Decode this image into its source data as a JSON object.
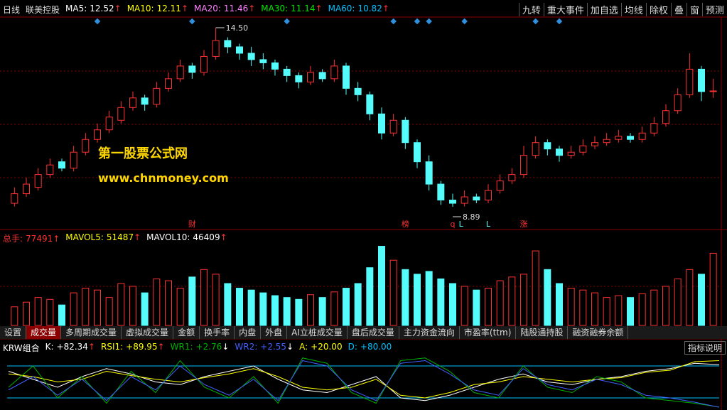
{
  "toolbar": {
    "period": "日线",
    "stock": "联美控股",
    "buttons": [
      "九转",
      "重大事件",
      "加自选",
      "均线",
      "除权",
      "叠",
      "窗",
      "预测"
    ]
  },
  "tabs": [
    "设置",
    "成交量",
    "多周期成交量",
    "虚拟成交量",
    "金额",
    "换手率",
    "内盘",
    "外盘",
    "AI立桩成交量",
    "盘后成交量",
    "主力资金流向",
    "市盈率(ttm)",
    "陆股通持股",
    "融资融券余额"
  ],
  "indicator_help": "指标说明",
  "watermark": {
    "line1": "第一股票公式网",
    "line2": "www.chnmoney.com"
  },
  "chart_data": [
    {
      "type": "candlestick",
      "ylim": [
        8.2,
        14.7
      ],
      "up_color": "#ff3232",
      "down_color": "#54fcfc",
      "legend_items": [
        {
          "name": "MA5:",
          "value": 12.52,
          "color": "#ffffff",
          "arrow": "↑"
        },
        {
          "name": "MA10:",
          "value": 12.11,
          "color": "#ffff00",
          "arrow": "↑"
        },
        {
          "name": "MA20:",
          "value": 11.46,
          "color": "#ff80ff",
          "arrow": "↑"
        },
        {
          "name": "MA30:",
          "value": 11.14,
          "color": "#00e600",
          "arrow": "↑"
        },
        {
          "name": "MA60:",
          "value": 10.82,
          "color": "#00c0ff",
          "arrow": "↑"
        }
      ],
      "high_label": {
        "value": 14.5,
        "label": "14.50"
      },
      "low_label": {
        "value": 8.89,
        "label": "8.89"
      },
      "markers": [
        "财",
        "榜",
        "q",
        "L",
        "L",
        "涨"
      ],
      "candles": [
        [
          9.0,
          9.5,
          8.9,
          9.3
        ],
        [
          9.3,
          9.8,
          9.2,
          9.6
        ],
        [
          9.5,
          10.1,
          9.4,
          9.9
        ],
        [
          9.9,
          10.4,
          9.8,
          10.2
        ],
        [
          10.3,
          10.4,
          10.0,
          10.1
        ],
        [
          10.1,
          10.8,
          10.0,
          10.6
        ],
        [
          10.6,
          11.2,
          10.5,
          11.0
        ],
        [
          11.0,
          11.5,
          10.9,
          11.3
        ],
        [
          11.3,
          11.9,
          11.2,
          11.7
        ],
        [
          11.6,
          12.2,
          11.5,
          12.0
        ],
        [
          12.0,
          12.5,
          11.9,
          12.3
        ],
        [
          12.3,
          12.4,
          11.9,
          12.1
        ],
        [
          12.1,
          12.8,
          12.0,
          12.6
        ],
        [
          12.6,
          13.1,
          12.5,
          12.9
        ],
        [
          12.9,
          13.5,
          12.8,
          13.3
        ],
        [
          13.3,
          13.4,
          12.9,
          13.1
        ],
        [
          13.1,
          13.8,
          13.0,
          13.6
        ],
        [
          13.6,
          14.5,
          13.5,
          14.1
        ],
        [
          14.1,
          14.2,
          13.7,
          13.9
        ],
        [
          13.9,
          14.0,
          13.5,
          13.7
        ],
        [
          13.7,
          13.9,
          13.3,
          13.5
        ],
        [
          13.5,
          13.7,
          13.2,
          13.4
        ],
        [
          13.4,
          13.5,
          13.0,
          13.2
        ],
        [
          13.2,
          13.3,
          12.8,
          13.0
        ],
        [
          13.0,
          13.1,
          12.6,
          12.8
        ],
        [
          12.8,
          13.3,
          12.7,
          13.1
        ],
        [
          13.1,
          13.2,
          12.8,
          12.9
        ],
        [
          12.9,
          13.5,
          12.8,
          13.3
        ],
        [
          13.3,
          13.4,
          12.4,
          12.6
        ],
        [
          12.6,
          12.8,
          12.2,
          12.4
        ],
        [
          12.4,
          12.5,
          11.6,
          11.8
        ],
        [
          11.8,
          12.0,
          11.0,
          11.2
        ],
        [
          11.2,
          11.8,
          11.1,
          11.6
        ],
        [
          11.6,
          11.7,
          10.7,
          10.9
        ],
        [
          10.9,
          11.0,
          10.1,
          10.3
        ],
        [
          10.3,
          10.5,
          9.4,
          9.6
        ],
        [
          9.6,
          9.7,
          8.95,
          9.1
        ],
        [
          9.1,
          9.3,
          8.89,
          9.0
        ],
        [
          9.0,
          9.4,
          8.9,
          9.2
        ],
        [
          9.2,
          9.3,
          9.0,
          9.1
        ],
        [
          9.1,
          9.6,
          9.0,
          9.4
        ],
        [
          9.4,
          9.9,
          9.3,
          9.7
        ],
        [
          9.7,
          10.1,
          9.6,
          9.9
        ],
        [
          9.9,
          10.8,
          9.8,
          10.5
        ],
        [
          10.5,
          11.1,
          10.4,
          10.9
        ],
        [
          10.9,
          11.0,
          10.5,
          10.7
        ],
        [
          10.7,
          10.8,
          10.3,
          10.5
        ],
        [
          10.5,
          10.8,
          10.4,
          10.6
        ],
        [
          10.6,
          11.0,
          10.5,
          10.8
        ],
        [
          10.8,
          11.1,
          10.7,
          10.9
        ],
        [
          10.9,
          11.2,
          10.8,
          11.0
        ],
        [
          11.0,
          11.3,
          10.9,
          11.1
        ],
        [
          11.1,
          11.2,
          10.9,
          11.0
        ],
        [
          11.0,
          11.4,
          10.9,
          11.2
        ],
        [
          11.2,
          11.7,
          11.1,
          11.5
        ],
        [
          11.5,
          12.1,
          11.4,
          11.9
        ],
        [
          11.9,
          12.6,
          11.8,
          12.4
        ],
        [
          12.4,
          13.7,
          12.3,
          13.2
        ],
        [
          13.2,
          13.3,
          12.2,
          12.5
        ],
        [
          12.5,
          12.9,
          12.3,
          12.52
        ]
      ]
    },
    {
      "type": "bar",
      "ylim": [
        0,
        90000
      ],
      "legend_items": [
        {
          "name": "总手:",
          "value": 77491,
          "color": "#ff3232",
          "arrow": "↑"
        },
        {
          "name": "MAVOL5:",
          "value": 51487,
          "color": "#ffff00",
          "arrow": "↑"
        },
        {
          "name": "MAVOL10:",
          "value": 46409,
          "color": "#ffffff",
          "arrow": "↑"
        }
      ],
      "values": [
        20000,
        25000,
        30000,
        28000,
        22000,
        35000,
        40000,
        38000,
        30000,
        45000,
        42000,
        35000,
        50000,
        48000,
        40000,
        52000,
        60000,
        55000,
        45000,
        40000,
        38000,
        35000,
        32000,
        30000,
        28000,
        33000,
        30000,
        36000,
        40000,
        45000,
        62000,
        85000,
        70000,
        60000,
        55000,
        58000,
        50000,
        45000,
        42000,
        38000,
        40000,
        48000,
        52000,
        55000,
        80000,
        60000,
        45000,
        40000,
        38000,
        35000,
        30000,
        32000,
        30000,
        34000,
        38000,
        42000,
        50000,
        60000,
        55000,
        77491
      ]
    },
    {
      "type": "line",
      "title": "KRW组合",
      "ylim": [
        0,
        100
      ],
      "levels": [
        20,
        80
      ],
      "legend_items": [
        {
          "name": "K:",
          "value": 82.34,
          "value_label": "+82.34",
          "color": "#ffffff",
          "arrow": "↑"
        },
        {
          "name": "RSI1:",
          "value": 89.95,
          "value_label": "+89.95",
          "color": "#ffff00",
          "arrow": "↑"
        },
        {
          "name": "WR1:",
          "value": 2.76,
          "value_label": "+2.76",
          "color": "#00b000",
          "arrow": "↓"
        },
        {
          "name": "WR2:",
          "value": 2.55,
          "value_label": "+2.55",
          "color": "#4060ff",
          "arrow": "↓"
        },
        {
          "name": "A:",
          "value": 20,
          "value_label": "+20.00",
          "color": "#ffff00"
        },
        {
          "name": "D:",
          "value": 80,
          "value_label": "+80.00",
          "color": "#00c0ff"
        }
      ],
      "series": [
        {
          "name": "K",
          "color": "#ffffff",
          "values": [
            70,
            55,
            40,
            60,
            75,
            65,
            50,
            45,
            60,
            70,
            80,
            55,
            35,
            30,
            45,
            60,
            20,
            15,
            25,
            40,
            55,
            65,
            50,
            45,
            55,
            60,
            70,
            75,
            85,
            82.34
          ]
        },
        {
          "name": "RSI1",
          "color": "#ffff00",
          "values": [
            65,
            60,
            50,
            55,
            70,
            62,
            55,
            50,
            58,
            65,
            75,
            60,
            40,
            35,
            40,
            55,
            25,
            20,
            30,
            45,
            50,
            60,
            55,
            50,
            55,
            58,
            68,
            72,
            88,
            89.95
          ]
        },
        {
          "name": "WR1",
          "color": "#00b000",
          "values": [
            40,
            80,
            20,
            60,
            10,
            70,
            30,
            90,
            40,
            20,
            60,
            10,
            95,
            85,
            30,
            10,
            90,
            95,
            70,
            30,
            20,
            80,
            40,
            30,
            60,
            50,
            20,
            15,
            10,
            2.76
          ]
        },
        {
          "name": "WR2",
          "color": "#4060ff",
          "values": [
            35,
            60,
            25,
            55,
            15,
            60,
            35,
            80,
            45,
            25,
            55,
            15,
            90,
            80,
            35,
            15,
            85,
            90,
            65,
            35,
            25,
            75,
            45,
            35,
            55,
            45,
            25,
            20,
            12,
            2.55
          ]
        }
      ]
    }
  ]
}
